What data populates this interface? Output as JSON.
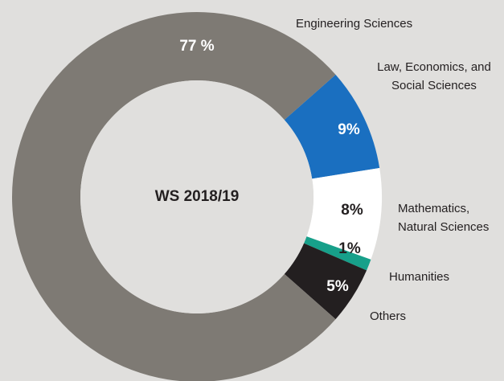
{
  "chart_data": {
    "type": "donut",
    "title": "WS 2018/19",
    "categories": [
      "Law, Economics, and Social Sciences",
      "Mathematics, Natural Sciences",
      "Humanities",
      "Others",
      "Engineering Sciences"
    ],
    "values": [
      9,
      8,
      1,
      5,
      77
    ],
    "value_labels": [
      "9%",
      "8%",
      "1%",
      "5%",
      "77 %"
    ],
    "colors": [
      "#1a6fc0",
      "#ffffff",
      "#17a08a",
      "#231f20",
      "#7e7a74"
    ]
  }
}
